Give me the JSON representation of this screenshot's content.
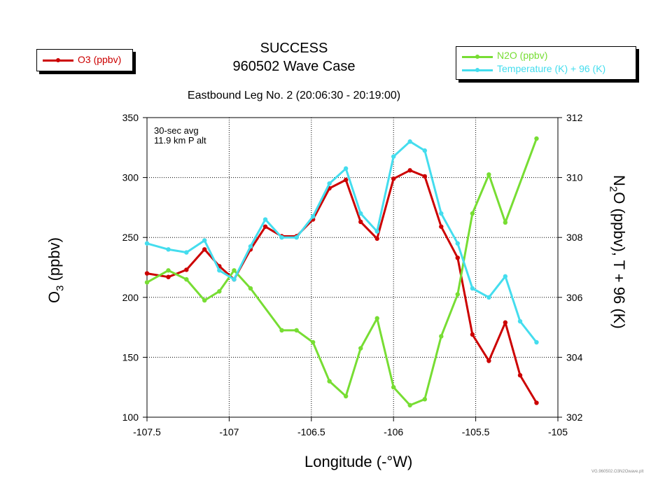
{
  "chart_data": {
    "type": "line",
    "title": "SUCCESS",
    "subtitle": "960502 Wave Case",
    "leg_title": "Eastbound Leg No. 2 (20:06:30 - 20:19:00)",
    "annotation": [
      "30-sec avg",
      "11.9 km P alt"
    ],
    "xlabel": "Longitude (-°W)",
    "ylabel_left": {
      "base": "O",
      "sub": "3",
      "rest": " (ppbv)"
    },
    "ylabel_right": {
      "base": "N",
      "sub": "2",
      "rest": "O (ppbv),   T + 96 (K)"
    },
    "xlim": [
      -107.5,
      -105
    ],
    "ylim_left": [
      100,
      350
    ],
    "ylim_right": [
      302,
      312
    ],
    "x_ticks": [
      -107.5,
      -107,
      -106.5,
      -106,
      -105.5,
      -105
    ],
    "x_tick_labels": [
      "-107.5",
      "-107",
      "-106.5",
      "-106",
      "-105.5",
      "-105"
    ],
    "y_left_ticks": [
      100,
      150,
      200,
      250,
      300,
      350
    ],
    "y_right_ticks": [
      302,
      304,
      306,
      308,
      310,
      312
    ],
    "grid": true,
    "series": [
      {
        "name": "O3 (ppbv)",
        "axis": "left",
        "color": "#cc0000",
        "x": [
          -107.5,
          -107.37,
          -107.26,
          -107.15,
          -107.06,
          -106.97,
          -106.87,
          -106.78,
          -106.68,
          -106.59,
          -106.49,
          -106.39,
          -106.29,
          -106.2,
          -106.1,
          -106.0,
          -105.9,
          -105.81,
          -105.71,
          -105.61,
          -105.52,
          -105.42,
          -105.32,
          -105.23,
          -105.13
        ],
        "values": [
          220,
          217,
          223,
          240,
          226,
          215,
          240,
          259,
          251,
          251,
          265,
          291,
          298,
          263,
          249,
          299,
          306,
          301,
          259,
          233,
          169,
          147,
          179,
          135,
          112
        ]
      },
      {
        "name": "N2O (ppbv)",
        "axis": "right",
        "color": "#77dd33",
        "x": [
          -107.5,
          -107.37,
          -107.26,
          -107.15,
          -107.06,
          -106.97,
          -106.87,
          -106.68,
          -106.59,
          -106.49,
          -106.39,
          -106.29,
          -106.2,
          -106.1,
          -106.0,
          -105.9,
          -105.81,
          -105.71,
          -105.61,
          -105.52,
          -105.42,
          -105.32,
          -105.13
        ],
        "values": [
          306.5,
          306.9,
          306.6,
          305.9,
          306.2,
          306.9,
          306.3,
          304.9,
          304.9,
          304.5,
          303.2,
          302.7,
          304.3,
          305.3,
          303.0,
          302.4,
          302.6,
          304.7,
          306.1,
          308.8,
          310.1,
          308.5,
          311.3
        ]
      },
      {
        "name": "Temperature (K)  +  96 (K)",
        "axis": "right",
        "color": "#44ddee",
        "x": [
          -107.5,
          -107.37,
          -107.26,
          -107.15,
          -107.06,
          -106.97,
          -106.87,
          -106.78,
          -106.68,
          -106.59,
          -106.49,
          -106.39,
          -106.29,
          -106.2,
          -106.1,
          -106.0,
          -105.9,
          -105.81,
          -105.71,
          -105.61,
          -105.52,
          -105.42,
          -105.32,
          -105.23,
          -105.13
        ],
        "values": [
          307.8,
          307.6,
          307.5,
          307.9,
          306.9,
          306.6,
          307.7,
          308.6,
          308.0,
          308.0,
          308.7,
          309.8,
          310.3,
          308.8,
          308.2,
          310.7,
          311.2,
          310.9,
          308.8,
          307.8,
          306.3,
          306.0,
          306.7,
          305.2,
          304.5
        ]
      }
    ]
  },
  "legend_left": [
    "O3 (ppbv)"
  ],
  "legend_right": [
    "N2O (ppbv)",
    "Temperature (K)  +  96 (K)"
  ],
  "footer": "VG.960502.O3N2Owave.plt"
}
